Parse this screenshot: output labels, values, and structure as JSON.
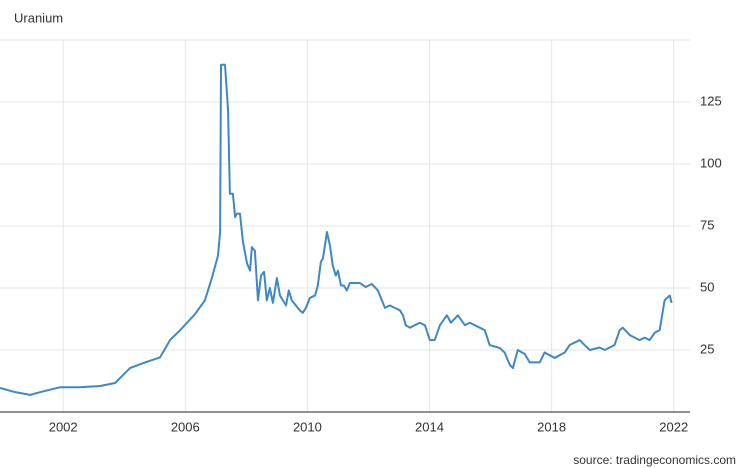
{
  "chart_data": {
    "type": "line",
    "title": "Uranium",
    "source": "source: tradingeconomics.com",
    "x": [
      1999.93,
      2000.43,
      2000.92,
      2001.24,
      2001.9,
      2002.55,
      2003.21,
      2003.7,
      2004.19,
      2004.68,
      2005.17,
      2005.5,
      2005.83,
      2006.32,
      2006.64,
      2006.87,
      2007.07,
      2007.14,
      2007.17,
      2007.3,
      2007.4,
      2007.46,
      2007.56,
      2007.63,
      2007.69,
      2007.79,
      2007.89,
      2008.02,
      2008.12,
      2008.18,
      2008.28,
      2008.38,
      2008.48,
      2008.58,
      2008.67,
      2008.77,
      2008.87,
      2009.0,
      2009.1,
      2009.2,
      2009.3,
      2009.39,
      2009.49,
      2009.62,
      2009.75,
      2009.85,
      2009.95,
      2010.08,
      2010.25,
      2010.34,
      2010.44,
      2010.51,
      2010.64,
      2010.74,
      2010.83,
      2010.93,
      2011.0,
      2011.1,
      2011.19,
      2011.29,
      2011.39,
      2011.72,
      2011.91,
      2012.11,
      2012.31,
      2012.44,
      2012.54,
      2012.7,
      2012.86,
      2013.03,
      2013.13,
      2013.22,
      2013.36,
      2013.52,
      2013.68,
      2013.85,
      2014.01,
      2014.17,
      2014.34,
      2014.57,
      2014.7,
      2014.93,
      2015.16,
      2015.32,
      2015.48,
      2015.81,
      2015.97,
      2016.3,
      2016.46,
      2016.63,
      2016.73,
      2016.89,
      2017.12,
      2017.28,
      2017.61,
      2017.77,
      2018.1,
      2018.43,
      2018.59,
      2018.92,
      2019.08,
      2019.25,
      2019.57,
      2019.74,
      2020.06,
      2020.23,
      2020.33,
      2020.56,
      2020.88,
      2021.05,
      2021.21,
      2021.38,
      2021.54,
      2021.7,
      2021.87,
      2021.93
    ],
    "values": [
      9.7,
      8,
      6.9,
      8,
      10,
      10,
      10.5,
      11.7,
      17.7,
      20,
      22,
      29,
      33,
      39.5,
      45,
      54,
      63,
      72.6,
      140,
      140,
      122,
      88,
      88,
      78.6,
      80,
      80,
      68.5,
      60,
      57,
      66.5,
      65,
      45,
      55,
      56.5,
      45,
      50,
      44,
      54,
      47,
      45,
      43,
      49,
      45,
      43,
      41,
      40,
      42,
      46,
      47,
      51,
      60.5,
      62,
      72.6,
      67,
      59,
      55,
      57,
      51,
      51,
      49,
      52,
      52,
      50.4,
      51.6,
      49,
      45,
      42,
      43,
      42,
      41,
      39,
      35,
      34,
      35,
      36,
      35,
      29,
      29,
      35,
      39,
      36,
      39,
      35,
      36,
      35,
      33,
      27,
      25.8,
      24,
      19,
      17.7,
      25,
      23.4,
      20,
      20,
      24,
      21.8,
      24,
      27,
      29,
      27,
      25,
      26,
      25,
      27,
      33,
      34,
      31,
      29,
      30,
      29,
      32,
      33,
      45,
      47,
      44
    ],
    "color": "#3f88c5",
    "xlim": [
      1999.93,
      2022.5
    ],
    "xticks": [
      2002,
      2006,
      2010,
      2014,
      2018,
      2022
    ],
    "ylim": [
      0,
      150
    ],
    "yticks": [
      25,
      50,
      75,
      100,
      125
    ],
    "grid": true
  }
}
